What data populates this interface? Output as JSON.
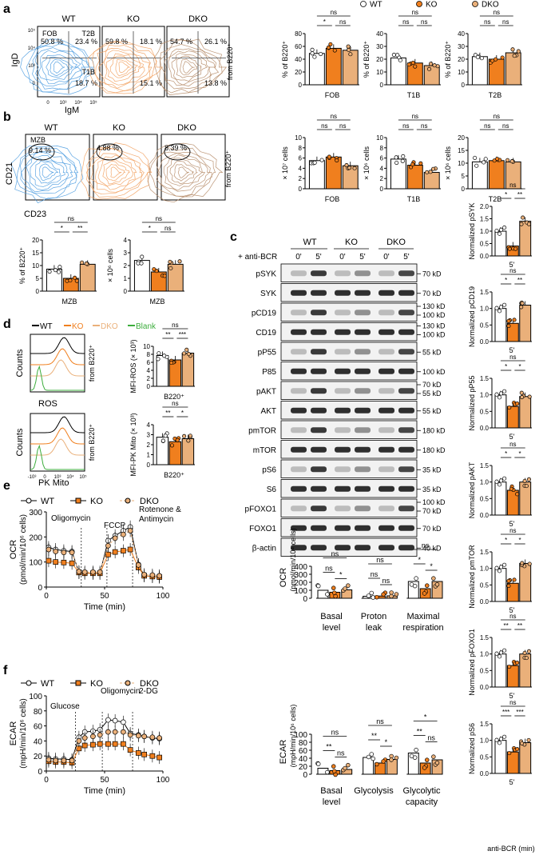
{
  "colors": {
    "wt": "#ffffff",
    "ko": "#f07f1e",
    "dko": "#eab07a",
    "wt_flow": "#4a9be0",
    "ko_flow": "#f2a05e",
    "dko_flow": "#b58a66",
    "blank": "#3cad3c"
  },
  "panel_letters": [
    "a",
    "b",
    "c",
    "d",
    "e",
    "f"
  ],
  "legend_top": [
    "WT",
    "KO",
    "DKO"
  ],
  "panel_a": {
    "groups": [
      "WT",
      "KO",
      "DKO"
    ],
    "y_axis": "IgD",
    "x_axis": "IgM",
    "side": "from B220⁺",
    "y_ticks": [
      "10⁵",
      "10⁴",
      "10³",
      "0"
    ],
    "x_ticks": [
      "0",
      "10³",
      "10⁴",
      "10⁵"
    ],
    "gate_labels": [
      "FOB",
      "T2B",
      "T1B"
    ],
    "wt": [
      "50.8 %",
      "23.4 %",
      "18.7 %"
    ],
    "ko": [
      "59.8 %",
      "18.1 %",
      "15.1 %"
    ],
    "dko": [
      "54.7 %",
      "26.1 %",
      "13.8 %"
    ],
    "bar_charts": [
      {
        "ylabel": "% of B220⁺",
        "xlabel": "FOB",
        "yticks": [
          "0",
          "20",
          "40",
          "60",
          "80"
        ],
        "values": [
          49,
          57,
          54
        ],
        "sig": [
          [
            "ns",
            "WT",
            "DKO"
          ],
          [
            "*",
            "WT",
            "KO"
          ],
          [
            "ns",
            "KO",
            "DKO"
          ]
        ]
      },
      {
        "ylabel": "% of B220⁺",
        "xlabel": "T1B",
        "yticks": [
          "0",
          "10",
          "20",
          "30",
          "40"
        ],
        "values": [
          21,
          17,
          15
        ],
        "sig": [
          [
            "ns",
            "WT",
            "DKO"
          ],
          [
            "ns",
            "WT",
            "KO"
          ],
          [
            "ns",
            "KO",
            "DKO"
          ]
        ]
      },
      {
        "ylabel": "% of B220⁺",
        "xlabel": "T2B",
        "yticks": [
          "0",
          "10",
          "20",
          "30",
          "40"
        ],
        "values": [
          22,
          20,
          25
        ],
        "sig": [
          [
            "ns",
            "WT",
            "DKO"
          ],
          [
            "ns",
            "WT",
            "KO"
          ],
          [
            "ns",
            "KO",
            "DKO"
          ]
        ]
      }
    ]
  },
  "panel_b": {
    "groups": [
      "WT",
      "KO",
      "DKO"
    ],
    "y_axis": "CD21",
    "x_axis": "CD23",
    "side": "from B220⁺",
    "gate": "MZB",
    "values": [
      "9.14 %",
      "4.88 %",
      "8.39 %"
    ],
    "bar_charts": [
      {
        "ylabel": "× 10⁷ cells",
        "xlabel": "FOB",
        "yticks": [
          "0",
          "2",
          "4",
          "6",
          "8",
          "10"
        ],
        "values": [
          5.5,
          6.2,
          4.5
        ],
        "sig": [
          [
            "ns",
            "WT",
            "DKO"
          ],
          [
            "ns",
            "WT",
            "KO"
          ],
          [
            "ns",
            "KO",
            "DKO"
          ]
        ]
      },
      {
        "ylabel": "× 10⁶ cells",
        "xlabel": "T1B",
        "yticks": [
          "0",
          "2",
          "4",
          "6",
          "8",
          "10"
        ],
        "values": [
          5.8,
          4.6,
          3.2
        ],
        "sig": [
          [
            "ns",
            "WT",
            "DKO"
          ],
          [
            "ns",
            "WT",
            "KO"
          ],
          [
            "ns",
            "KO",
            "DKO"
          ]
        ]
      },
      {
        "ylabel": "× 10⁶ cells",
        "xlabel": "T2B",
        "yticks": [
          "0",
          "5",
          "10",
          "15",
          "20"
        ],
        "values": [
          10.5,
          11,
          10.5
        ],
        "sig": [
          [
            "ns",
            "WT",
            "DKO"
          ],
          [
            "ns",
            "WT",
            "KO"
          ],
          [
            "ns",
            "KO",
            "DKO"
          ]
        ]
      },
      {
        "ylabel": "% of B220⁺",
        "xlabel": "MZB",
        "yticks": [
          "0",
          "5",
          "10",
          "15",
          "20"
        ],
        "values": [
          8.6,
          5,
          10.5
        ],
        "sig": [
          [
            "ns",
            "WT",
            "DKO"
          ],
          [
            "*",
            "WT",
            "KO"
          ],
          [
            "**",
            "KO",
            "DKO"
          ]
        ]
      },
      {
        "ylabel": "× 10⁶ cells",
        "xlabel": "MZB",
        "yticks": [
          "0",
          "1",
          "2",
          "3",
          "4"
        ],
        "values": [
          2.4,
          1.5,
          2.1
        ],
        "sig": [
          [
            "ns",
            "WT",
            "DKO"
          ],
          [
            "*",
            "WT",
            "KO"
          ],
          [
            "ns",
            "KO",
            "DKO"
          ]
        ]
      }
    ]
  },
  "panel_c": {
    "groups": [
      "WT",
      "KO",
      "DKO"
    ],
    "treat": "+ anti-BCR",
    "time_labels": [
      "0'",
      "5'",
      "0'",
      "5'",
      "0'",
      "5'"
    ],
    "rows": [
      {
        "name": "pSYK",
        "kd": [
          "70 kD"
        ]
      },
      {
        "name": "SYK",
        "kd": [
          "70 kD"
        ]
      },
      {
        "name": "pCD19",
        "kd": [
          "130 kD",
          "100 kD"
        ]
      },
      {
        "name": "CD19",
        "kd": [
          "130 kD",
          "100 kD"
        ]
      },
      {
        "name": "pP55",
        "kd": [
          "55 kD"
        ]
      },
      {
        "name": "P85",
        "kd": [
          "100 kD"
        ]
      },
      {
        "name": "pAKT",
        "kd": [
          "70 kD",
          "55 kD"
        ]
      },
      {
        "name": "AKT",
        "kd": [
          "55 kD"
        ]
      },
      {
        "name": "pmTOR",
        "kd": [
          "180 kD"
        ]
      },
      {
        "name": "mTOR",
        "kd": [
          "180 kD"
        ]
      },
      {
        "name": "pS6",
        "kd": [
          "35 kD"
        ]
      },
      {
        "name": "S6",
        "kd": [
          "35 kD"
        ]
      },
      {
        "name": "pFOXO1",
        "kd": [
          "100 kD",
          "70 kD"
        ]
      },
      {
        "name": "FOXO1",
        "kd": [
          "70 kD"
        ]
      },
      {
        "name": "β-actin",
        "kd": [
          "40 kD"
        ]
      }
    ],
    "norm_charts": [
      {
        "ylabel": "Normalized pSYK",
        "yticks": [
          "0.0",
          "0.5",
          "1.0",
          "1.5",
          "2.0"
        ],
        "values": [
          1.0,
          0.4,
          1.4
        ],
        "sig": [
          [
            "ns",
            "WT",
            "DKO"
          ],
          [
            "*",
            "WT",
            "KO"
          ],
          [
            "**",
            "KO",
            "DKO"
          ]
        ]
      },
      {
        "ylabel": "Normalized pCD19",
        "yticks": [
          "0.0",
          "0.5",
          "1.0",
          "1.5"
        ],
        "values": [
          1.0,
          0.55,
          1.1
        ],
        "sig": [
          [
            "ns",
            "WT",
            "DKO"
          ],
          [
            "*",
            "WT",
            "KO"
          ],
          [
            "**",
            "KO",
            "DKO"
          ]
        ]
      },
      {
        "ylabel": "Normalized pP55",
        "yticks": [
          "0.0",
          "0.5",
          "1.0",
          "1.5"
        ],
        "values": [
          1.0,
          0.65,
          0.95
        ],
        "sig": [
          [
            "ns",
            "WT",
            "DKO"
          ],
          [
            "*",
            "WT",
            "KO"
          ],
          [
            "*",
            "KO",
            "DKO"
          ]
        ]
      },
      {
        "ylabel": "Normalized pAKT",
        "yticks": [
          "0.0",
          "0.5",
          "1.0",
          "1.5"
        ],
        "values": [
          1.0,
          0.75,
          1.0
        ],
        "sig": [
          [
            "ns",
            "WT",
            "DKO"
          ],
          [
            "*",
            "WT",
            "KO"
          ],
          [
            "*",
            "KO",
            "DKO"
          ]
        ]
      },
      {
        "ylabel": "Normalized pmTOR",
        "yticks": [
          "0.0",
          "0.5",
          "1.0",
          "1.5"
        ],
        "values": [
          1.0,
          0.55,
          1.15
        ],
        "sig": [
          [
            "ns",
            "WT",
            "DKO"
          ],
          [
            "*",
            "WT",
            "KO"
          ],
          [
            "*",
            "KO",
            "DKO"
          ]
        ]
      },
      {
        "ylabel": "Normalized pFOXO1",
        "yticks": [
          "0.0",
          "0.5",
          "1.0",
          "1.5"
        ],
        "values": [
          1.0,
          0.65,
          1.0
        ],
        "sig": [
          [
            "ns",
            "WT",
            "DKO"
          ],
          [
            "**",
            "WT",
            "KO"
          ],
          [
            "**",
            "KO",
            "DKO"
          ]
        ]
      },
      {
        "ylabel": "Normalized pS6",
        "yticks": [
          "0.0",
          "0.5",
          "1.0",
          "1.5"
        ],
        "values": [
          1.0,
          0.65,
          0.93
        ],
        "sig": [
          [
            "ns",
            "WT",
            "DKO"
          ],
          [
            "***",
            "WT",
            "KO"
          ],
          [
            "***",
            "KO",
            "DKO"
          ]
        ]
      }
    ],
    "x_time": "5'",
    "footer": "anti-BCR (min)"
  },
  "panel_d": {
    "legend": [
      "WT",
      "KO",
      "DKO",
      "Blank"
    ],
    "side": "from B220⁺",
    "counts_label": "Counts",
    "hist1_x": "ROS",
    "hist2_x": "PK Mito",
    "x_ticks": [
      "-10³",
      "0",
      "10³",
      "10⁴",
      "10⁵"
    ],
    "bar_charts": [
      {
        "ylabel": "MFI-ROS (× 10³)",
        "xlabel": "B220⁺",
        "yticks": [
          "0",
          "2",
          "4",
          "6",
          "8",
          "10"
        ],
        "values": [
          7.7,
          6.6,
          8.3
        ],
        "sig": [
          [
            "ns",
            "WT",
            "DKO"
          ],
          [
            "**",
            "WT",
            "KO"
          ],
          [
            "***",
            "KO",
            "DKO"
          ]
        ]
      },
      {
        "ylabel": "MFI-PK Mito (× 10³)",
        "xlabel": "B220⁺",
        "yticks": [
          "0",
          "1",
          "2",
          "3",
          "4"
        ],
        "values": [
          2.75,
          2.3,
          2.6
        ],
        "sig": [
          [
            "ns",
            "WT",
            "DKO"
          ],
          [
            "**",
            "WT",
            "KO"
          ],
          [
            "*",
            "KO",
            "DKO"
          ]
        ]
      }
    ]
  },
  "panel_e": {
    "legend": [
      "WT",
      "KO",
      "DKO"
    ],
    "ylabel1": "OCR",
    "ylabel2": "(pmol/min/10⁶ cells)",
    "xlabel": "Time (min)",
    "injections": [
      "Oligomycin",
      "FCCP",
      "Rotenone &",
      "Antimycin"
    ],
    "yticks": [
      "0",
      "100",
      "200",
      "300"
    ],
    "xticks": [
      "0",
      "50",
      "100"
    ],
    "bar_categories": [
      "Basal",
      "level",
      "Proton",
      "leak",
      "Maximal",
      "respiration"
    ],
    "bar_yticks": [
      "0",
      "100",
      "200",
      "300",
      "400"
    ]
  },
  "panel_f": {
    "legend": [
      "WT",
      "KO",
      "DKO"
    ],
    "ylabel1": "ECAR",
    "ylabel2": "(mpH/min/10⁶ cells)",
    "xlabel": "Time (min)",
    "injections": [
      "Glucose",
      "Oligomycin",
      "2-DG"
    ],
    "yticks": [
      "0",
      "20",
      "40",
      "60",
      "80",
      "100"
    ],
    "xticks": [
      "0",
      "50",
      "100"
    ],
    "bar_categories": [
      "Basal",
      "level",
      "Glycolysis",
      "Glycolytic",
      "capacity"
    ],
    "bar_yticks": [
      "0",
      "20",
      "40",
      "60",
      "80",
      "100"
    ]
  },
  "chart_data": [
    {
      "type": "line",
      "title": "",
      "xlabel": "Time (min)",
      "ylabel": "OCR (pmol/min/10⁶ cells)",
      "xlim": [
        0,
        100
      ],
      "ylim": [
        0,
        300
      ],
      "x": [
        2,
        8,
        15,
        22,
        28,
        33,
        40,
        46,
        53,
        59,
        66,
        72,
        79,
        84,
        91,
        97
      ],
      "series": [
        {
          "name": "WT",
          "values": [
            158,
            150,
            145,
            142,
            58,
            56,
            55,
            55,
            185,
            205,
            225,
            240,
            90,
            45,
            42,
            40
          ]
        },
        {
          "name": "KO",
          "values": [
            105,
            100,
            98,
            95,
            58,
            55,
            55,
            55,
            130,
            140,
            145,
            150,
            78,
            45,
            42,
            40
          ]
        },
        {
          "name": "DKO",
          "values": [
            150,
            142,
            138,
            138,
            62,
            60,
            60,
            60,
            165,
            195,
            210,
            225,
            88,
            50,
            48,
            45
          ]
        }
      ]
    },
    {
      "type": "line",
      "title": "",
      "xlabel": "Time (min)",
      "ylabel": "ECAR (mpH/min/10⁶ cells)",
      "xlim": [
        0,
        100
      ],
      "ylim": [
        0,
        100
      ],
      "x": [
        2,
        8,
        15,
        22,
        28,
        33,
        40,
        46,
        53,
        59,
        66,
        72,
        79,
        84,
        91,
        97
      ],
      "series": [
        {
          "name": "WT",
          "values": [
            17,
            16,
            16,
            15,
            45,
            52,
            53,
            55,
            68,
            67,
            65,
            50,
            48,
            46,
            44,
            43
          ]
        },
        {
          "name": "KO",
          "values": [
            13,
            12,
            12,
            11,
            30,
            34,
            35,
            36,
            36,
            36,
            36,
            28,
            24,
            22,
            20,
            18
          ]
        },
        {
          "name": "DKO",
          "values": [
            15,
            14,
            14,
            14,
            40,
            44,
            46,
            48,
            52,
            52,
            52,
            48,
            47,
            46,
            45,
            44
          ]
        }
      ]
    },
    {
      "type": "bar",
      "title": "",
      "categories": [
        "Basal level",
        "Proton leak",
        "Maximal respiration"
      ],
      "ylabel": "OCR (pmol/min/10⁶ cells)",
      "ylim": [
        0,
        400
      ],
      "series": [
        {
          "name": "WT",
          "values": [
            100,
            25,
            210
          ]
        },
        {
          "name": "KO",
          "values": [
            75,
            28,
            120
          ]
        },
        {
          "name": "DKO",
          "values": [
            105,
            30,
            210
          ]
        }
      ],
      "sig": [
        [
          [
            "ns",
            "WT",
            "DKO"
          ],
          [
            "ns",
            "WT",
            "KO"
          ],
          [
            "*",
            "KO",
            "DKO"
          ]
        ],
        [
          [
            "ns",
            "WT",
            "DKO"
          ],
          [
            "ns",
            "WT",
            "KO"
          ],
          [
            "ns",
            "KO",
            "DKO"
          ]
        ],
        [
          [
            "ns",
            "WT",
            "DKO"
          ],
          [
            "*",
            "WT",
            "KO"
          ],
          [
            "*",
            "KO",
            "DKO"
          ]
        ]
      ]
    },
    {
      "type": "bar",
      "title": "",
      "categories": [
        "Basal level",
        "Glycolysis",
        "Glycolytic capacity"
      ],
      "ylabel": "ECAR (mpH/min/10⁶ cells)",
      "ylim": [
        0,
        100
      ],
      "series": [
        {
          "name": "WT",
          "values": [
            15,
            42,
            53
          ]
        },
        {
          "name": "KO",
          "values": [
            9,
            28,
            28
          ]
        },
        {
          "name": "DKO",
          "values": [
            12,
            37,
            36
          ]
        }
      ],
      "sig": [
        [
          [
            "ns",
            "WT",
            "DKO"
          ],
          [
            "**",
            "WT",
            "KO"
          ],
          [
            "ns",
            "KO",
            "DKO"
          ]
        ],
        [
          [
            "ns",
            "WT",
            "DKO"
          ],
          [
            "**",
            "WT",
            "KO"
          ],
          [
            "*",
            "KO",
            "DKO"
          ]
        ],
        [
          [
            "*",
            "WT",
            "DKO"
          ],
          [
            "**",
            "WT",
            "KO"
          ],
          [
            "ns",
            "KO",
            "DKO"
          ]
        ]
      ]
    }
  ]
}
